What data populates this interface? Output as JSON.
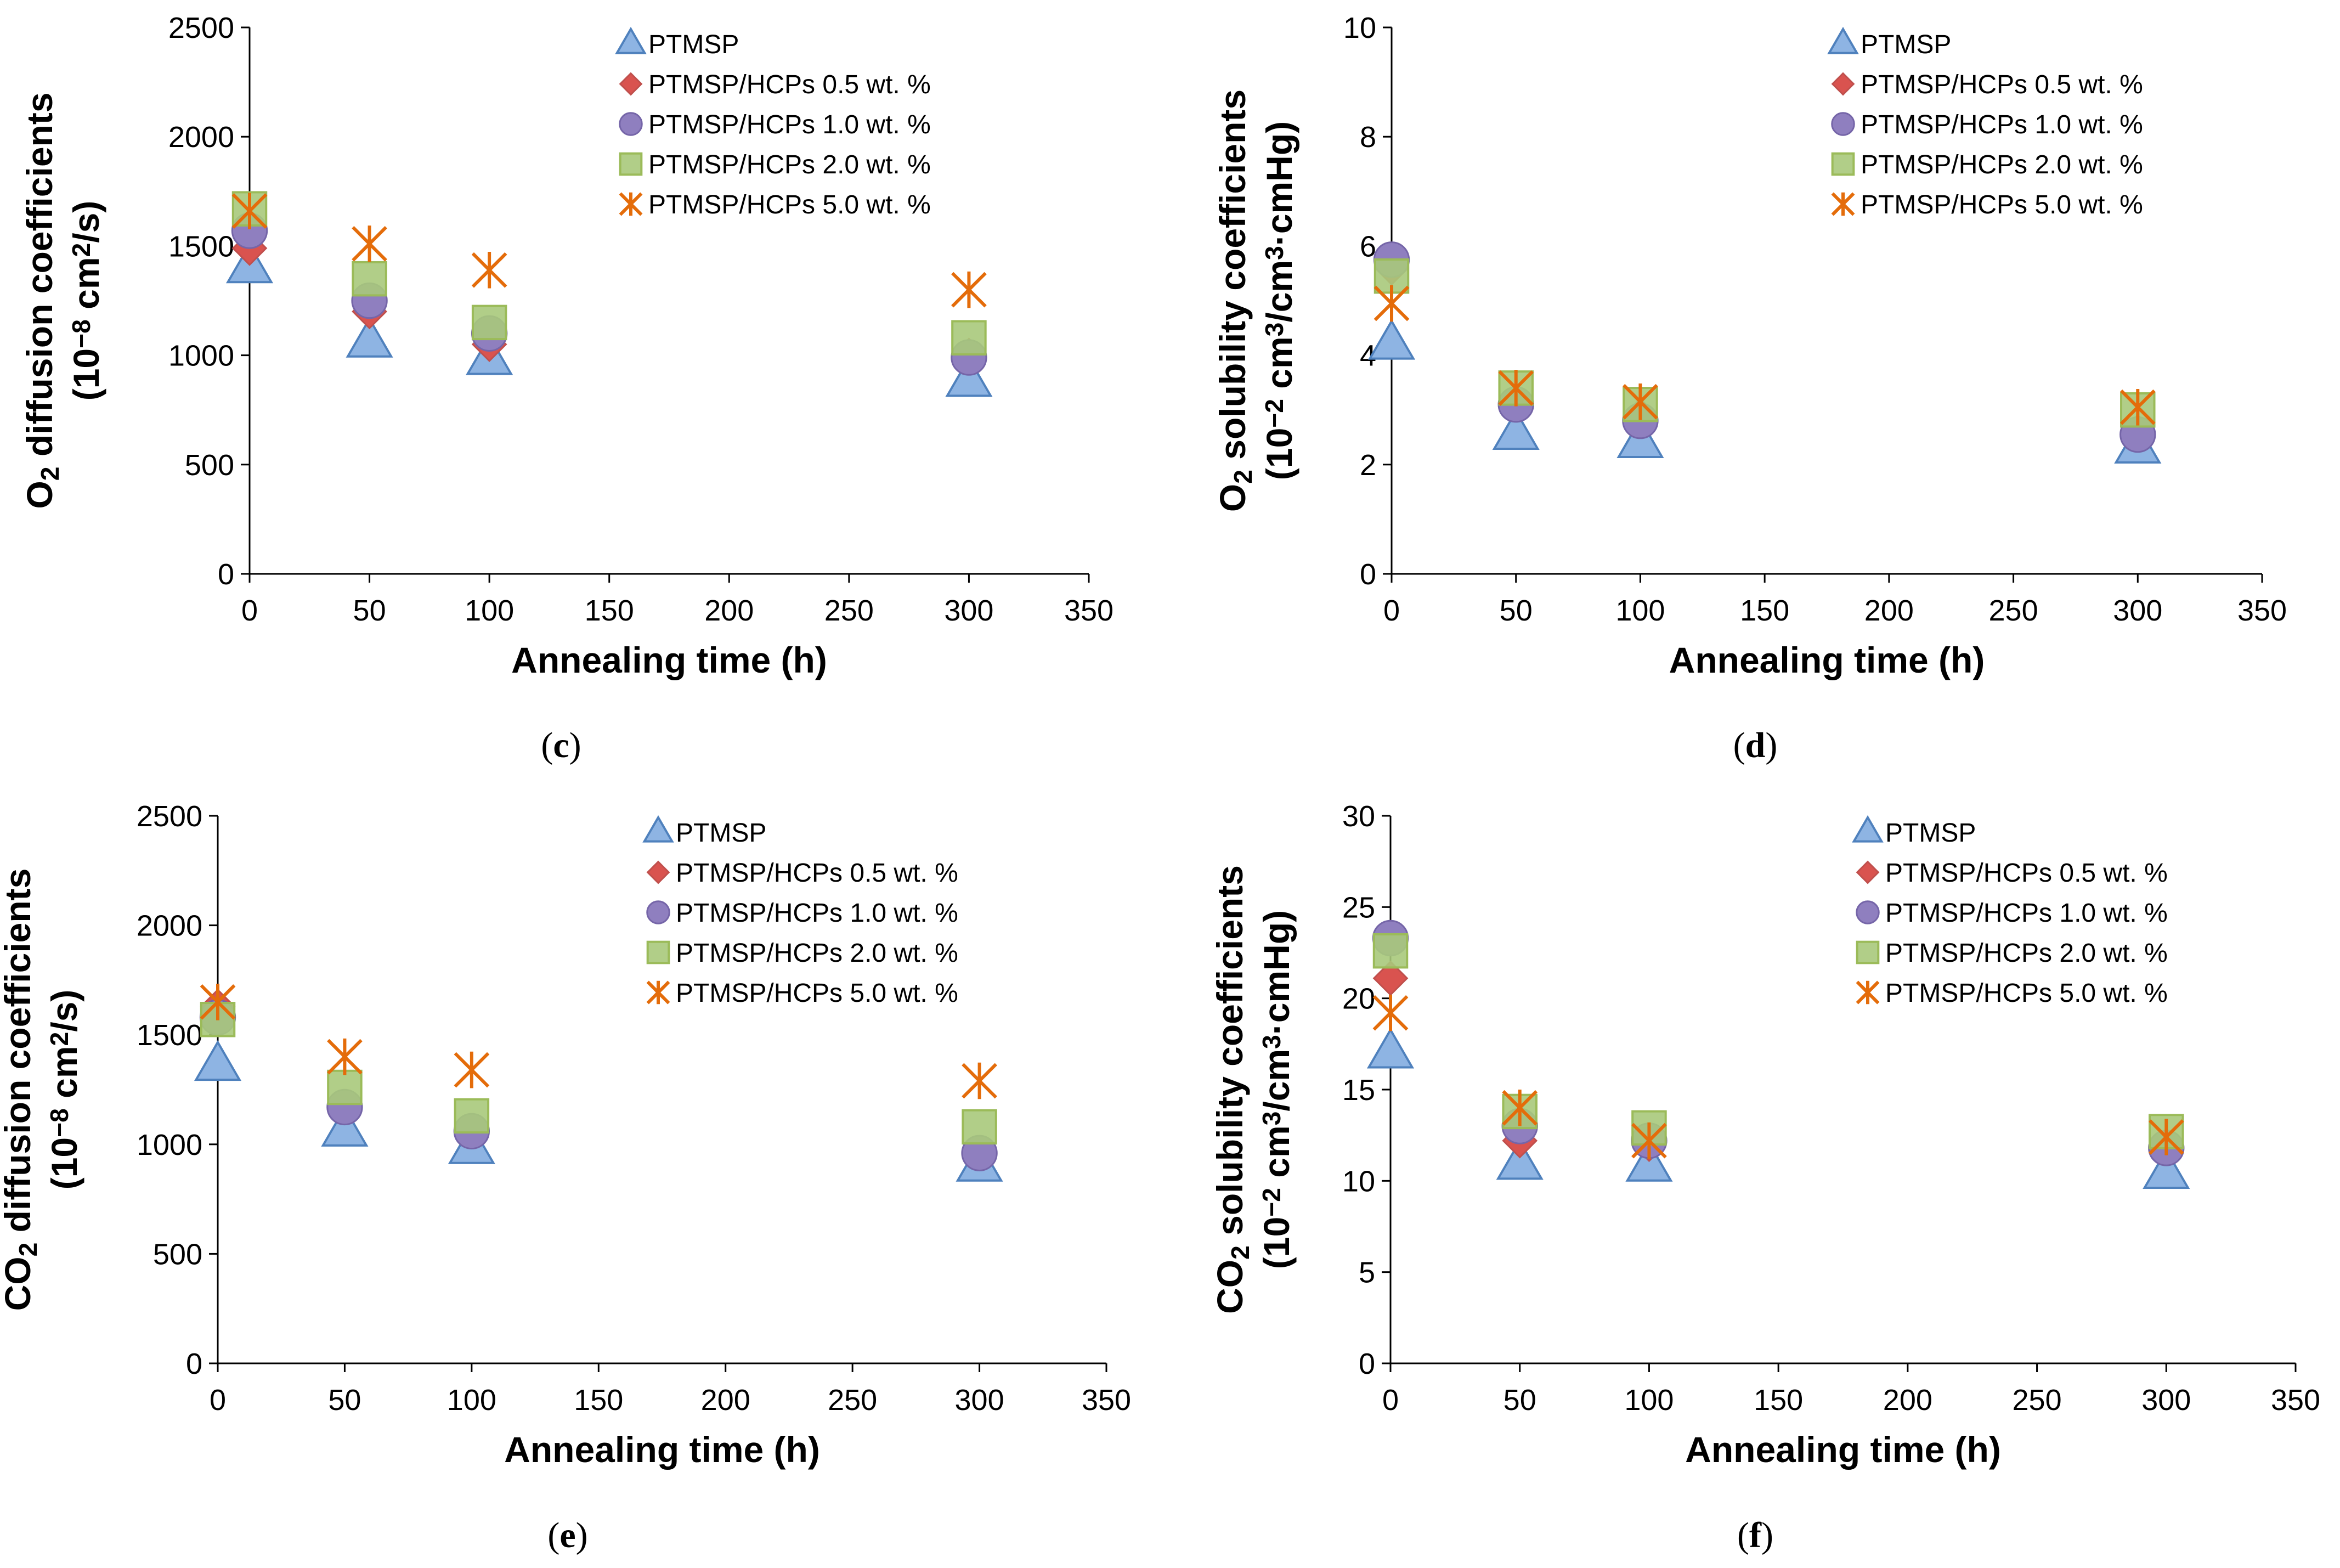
{
  "chart_data": [
    {
      "type": "scatter",
      "panel_label": "(c)",
      "title": "",
      "xlabel": "Annealing time (h)",
      "ylabel_line1": "O2 diffusion coefficients",
      "ylabel_line2": "(10−8 cm2/s)",
      "ylim": [
        0,
        2500
      ],
      "y_ticks": [
        "0",
        "500",
        "1000",
        "1500",
        "2000",
        "2500"
      ],
      "xlim": [
        0,
        350
      ],
      "x_ticks": [
        "0",
        "50",
        "100",
        "150",
        "200",
        "250",
        "300",
        "350"
      ],
      "legend_position": "top-right",
      "x": [
        0,
        50,
        100,
        300
      ],
      "series": [
        {
          "name": "PTMSP",
          "values": [
            1400,
            1060,
            980,
            880
          ]
        },
        {
          "name": "PTMSP/HCPs 0.5 wt. %",
          "values": [
            1490,
            1200,
            1050,
            1000
          ]
        },
        {
          "name": "PTMSP/HCPs 1.0 wt. %",
          "values": [
            1570,
            1250,
            1100,
            990
          ]
        },
        {
          "name": "PTMSP/HCPs 2.0 wt. %",
          "values": [
            1670,
            1350,
            1150,
            1080
          ]
        },
        {
          "name": "PTMSP/HCPs 5.0 wt. %",
          "values": [
            1660,
            1510,
            1390,
            1300
          ]
        }
      ]
    },
    {
      "type": "scatter",
      "panel_label": "(d)",
      "title": "",
      "xlabel": "Annealing time (h)",
      "ylabel_line1": "O2 solubility coefficients",
      "ylabel_line2": "(10−2 cm3/cm3·cmHg)",
      "ylim": [
        0,
        10
      ],
      "y_ticks": [
        "0",
        "2",
        "4",
        "6",
        "8",
        "10"
      ],
      "xlim": [
        0,
        350
      ],
      "x_ticks": [
        "0",
        "50",
        "100",
        "150",
        "200",
        "250",
        "300",
        "350"
      ],
      "legend_position": "top-right",
      "x": [
        0,
        50,
        100,
        300
      ],
      "series": [
        {
          "name": "PTMSP",
          "values": [
            4.2,
            2.55,
            2.4,
            2.3
          ]
        },
        {
          "name": "PTMSP/HCPs 0.5 wt. %",
          "values": [
            5.6,
            3.1,
            2.9,
            2.6
          ]
        },
        {
          "name": "PTMSP/HCPs 1.0 wt. %",
          "values": [
            5.75,
            3.1,
            2.8,
            2.55
          ]
        },
        {
          "name": "PTMSP/HCPs 2.0 wt. %",
          "values": [
            5.45,
            3.4,
            3.1,
            3.0
          ]
        },
        {
          "name": "PTMSP/HCPs 5.0 wt. %",
          "values": [
            4.95,
            3.4,
            3.15,
            3.05
          ]
        }
      ]
    },
    {
      "type": "scatter",
      "panel_label": "(e)",
      "title": "",
      "xlabel": "Annealing time (h)",
      "ylabel_line1": "CO2 diffusion coefficients",
      "ylabel_line2": "(10−8 cm2/s)",
      "ylim": [
        0,
        2500
      ],
      "y_ticks": [
        "0",
        "500",
        "1000",
        "1500",
        "2000",
        "2500"
      ],
      "xlim": [
        0,
        350
      ],
      "x_ticks": [
        "0",
        "50",
        "100",
        "150",
        "200",
        "250",
        "300",
        "350"
      ],
      "legend_position": "top-right",
      "x": [
        0,
        50,
        100,
        300
      ],
      "series": [
        {
          "name": "PTMSP",
          "values": [
            1360,
            1060,
            980,
            900
          ]
        },
        {
          "name": "PTMSP/HCPs 0.5 wt. %",
          "values": [
            1630,
            1170,
            1060,
            960
          ]
        },
        {
          "name": "PTMSP/HCPs 1.0 wt. %",
          "values": [
            1580,
            1170,
            1060,
            960
          ]
        },
        {
          "name": "PTMSP/HCPs 2.0 wt. %",
          "values": [
            1570,
            1260,
            1130,
            1080
          ]
        },
        {
          "name": "PTMSP/HCPs 5.0 wt. %",
          "values": [
            1650,
            1400,
            1340,
            1290
          ]
        }
      ]
    },
    {
      "type": "scatter",
      "panel_label": "(f)",
      "title": "",
      "xlabel": "Annealing time (h)",
      "ylabel_line1": "CO2 solubility coefficients",
      "ylabel_line2": "(10−2 cm3/cm3·cmHg)",
      "ylim": [
        0,
        30
      ],
      "y_ticks": [
        "0",
        "5",
        "10",
        "15",
        "20",
        "25",
        "30"
      ],
      "xlim": [
        0,
        350
      ],
      "x_ticks": [
        "0",
        "50",
        "100",
        "150",
        "200",
        "250",
        "300",
        "350"
      ],
      "legend_position": "top-right",
      "x": [
        0,
        50,
        100,
        300
      ],
      "series": [
        {
          "name": "PTMSP",
          "values": [
            17.0,
            10.9,
            10.8,
            10.4
          ]
        },
        {
          "name": "PTMSP/HCPs 0.5 wt. %",
          "values": [
            21.1,
            12.2,
            12.0,
            11.8
          ]
        },
        {
          "name": "PTMSP/HCPs 1.0 wt. %",
          "values": [
            23.3,
            13.0,
            12.2,
            11.8
          ]
        },
        {
          "name": "PTMSP/HCPs 2.0 wt. %",
          "values": [
            22.6,
            13.8,
            12.9,
            12.7
          ]
        },
        {
          "name": "PTMSP/HCPs 5.0 wt. %",
          "values": [
            19.2,
            14.0,
            12.2,
            12.4
          ]
        }
      ]
    }
  ],
  "marker_styles": [
    {
      "shape": "triangle",
      "fill": "#8eb4e3",
      "stroke": "#4f81bd"
    },
    {
      "shape": "diamond",
      "fill": "#d9534f",
      "stroke": "#c0504d"
    },
    {
      "shape": "circle",
      "fill": "#8f7fbf",
      "stroke": "#7565a8"
    },
    {
      "shape": "square",
      "fill": "#a9c97b",
      "stroke": "#9bbb59"
    },
    {
      "shape": "star",
      "fill": "#f08a33",
      "stroke": "#e46c0a"
    }
  ]
}
